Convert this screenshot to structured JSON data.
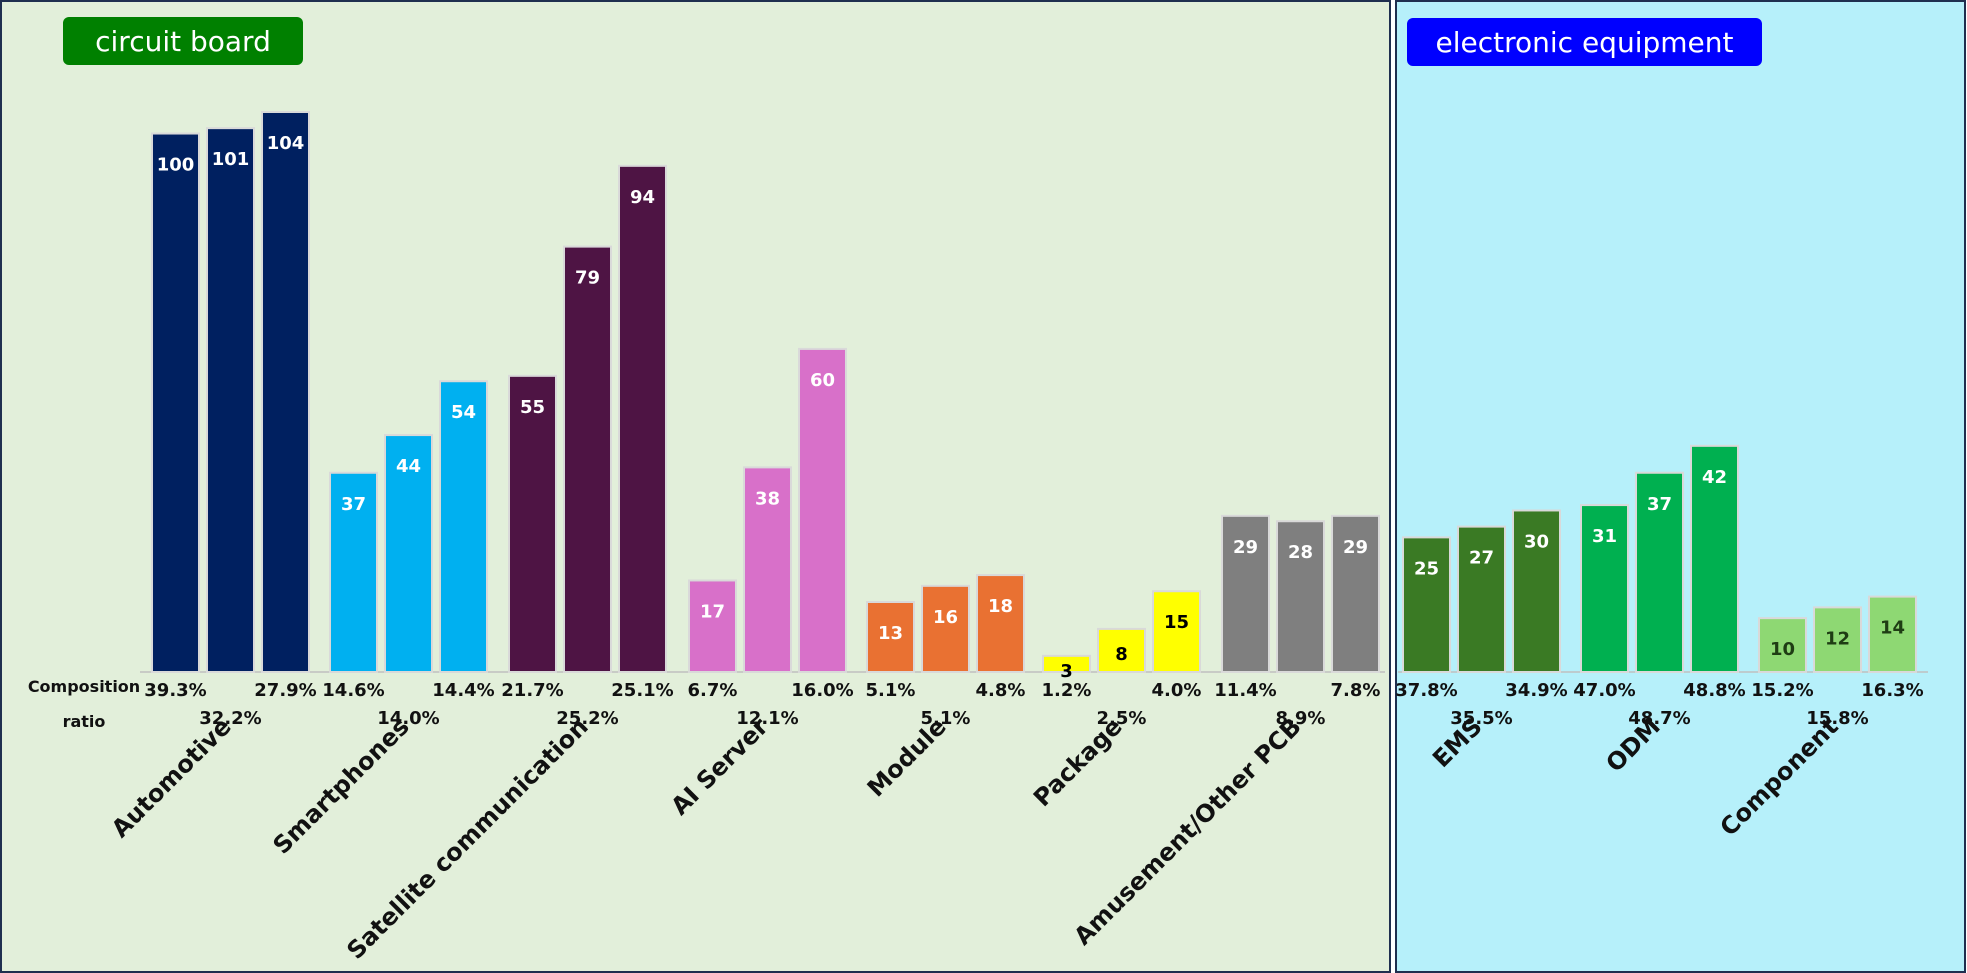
{
  "chart_data": {
    "type": "bar",
    "panels": [
      {
        "title": "circuit board",
        "title_color": "#008000",
        "background": "#e2efda"
      },
      {
        "title": "electronic equipment",
        "title_color": "#0000ff",
        "background": "#b6f0fa"
      }
    ],
    "ratio_label_top": "Composition",
    "ratio_label_bottom": "ratio",
    "groups": [
      {
        "name": "Automotive",
        "panel": 0,
        "color": "#002060",
        "label_color": "#ffffff",
        "values": [
          100,
          101,
          104
        ],
        "ratios": [
          "39.3%",
          "32.2%",
          "27.9%"
        ]
      },
      {
        "name": "Smartphones",
        "panel": 0,
        "color": "#00b0f0",
        "label_color": "#ffffff",
        "values": [
          37,
          44,
          54
        ],
        "ratios": [
          "14.6%",
          "14.0%",
          "14.4%"
        ]
      },
      {
        "name": "Satellite communication",
        "panel": 0,
        "color": "#4e1444",
        "label_color": "#ffffff",
        "values": [
          55,
          79,
          94
        ],
        "ratios": [
          "21.7%",
          "25.2%",
          "25.1%"
        ]
      },
      {
        "name": "AI Server",
        "panel": 0,
        "color": "#d870c9",
        "label_color": "#ffffff",
        "values": [
          17,
          38,
          60
        ],
        "ratios": [
          "6.7%",
          "12.1%",
          "16.0%"
        ]
      },
      {
        "name": "Module",
        "panel": 0,
        "color": "#e97132",
        "label_color": "#ffffff",
        "values": [
          13,
          16,
          18
        ],
        "ratios": [
          "5.1%",
          "5.1%",
          "4.8%"
        ]
      },
      {
        "name": "Package",
        "panel": 0,
        "color": "#ffff00",
        "label_color": "#000000",
        "values": [
          3,
          8,
          15
        ],
        "ratios": [
          "1.2%",
          "2.5%",
          "4.0%"
        ]
      },
      {
        "name": "Amusement/Other PCB",
        "panel": 0,
        "color": "#7f7f7f",
        "label_color": "#ffffff",
        "values": [
          29,
          28,
          29
        ],
        "ratios": [
          "11.4%",
          "8.9%",
          "7.8%"
        ]
      },
      {
        "name": "EMS",
        "panel": 1,
        "color": "#3a7a24",
        "label_color": "#ffffff",
        "values": [
          25,
          27,
          30
        ],
        "ratios": [
          "37.8%",
          "35.5%",
          "34.9%"
        ]
      },
      {
        "name": "ODM",
        "panel": 1,
        "color": "#00b050",
        "label_color": "#ffffff",
        "values": [
          31,
          37,
          42
        ],
        "ratios": [
          "47.0%",
          "48.7%",
          "48.8%"
        ]
      },
      {
        "name": "Component",
        "panel": 1,
        "color": "#8ed873",
        "label_color": "#1f3d14",
        "values": [
          10,
          12,
          14
        ],
        "ratios": [
          "15.2%",
          "15.8%",
          "16.3%"
        ]
      }
    ],
    "ylim": [
      0,
      104
    ],
    "grid": false,
    "legend": "none"
  }
}
